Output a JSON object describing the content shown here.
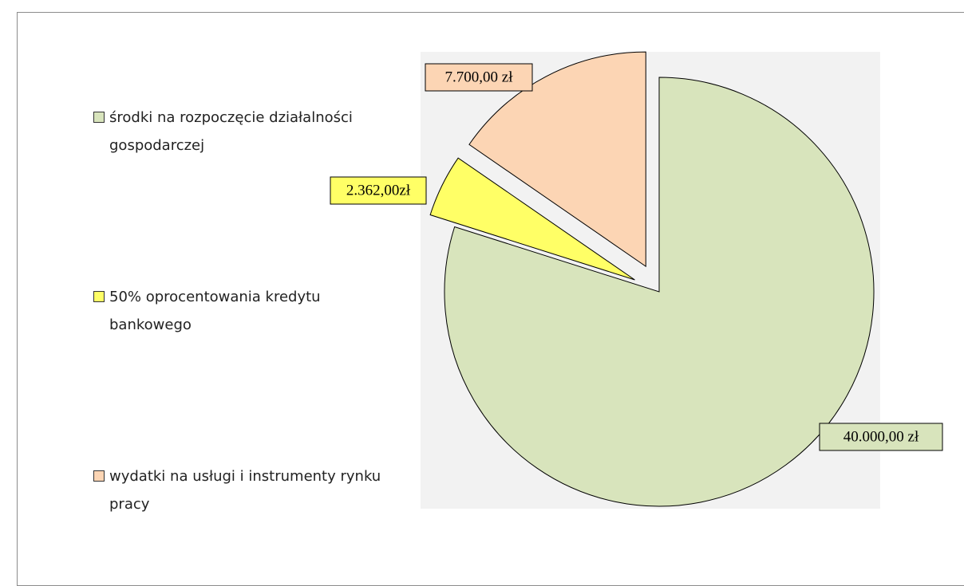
{
  "chart_data": {
    "type": "pie",
    "categories": [
      "środki na rozpoczęcie działalności gospodarczej",
      "50% oprocentowania kredytu bankowego",
      "wydatki na usługi i instrumenty rynku pracy"
    ],
    "values": [
      40000,
      2362,
      7700
    ],
    "value_labels": [
      "40.000,00 zł",
      "2.362,00zł",
      "7.700,00 zł"
    ],
    "colors": [
      "#d8e4bc",
      "#ffff66",
      "#fcd5b4"
    ],
    "legend": "left"
  }
}
